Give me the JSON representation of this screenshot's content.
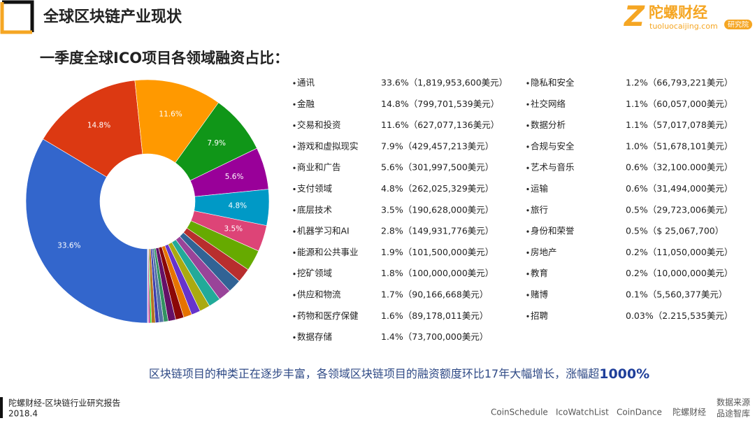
{
  "header": {
    "title": "全球区块链产业现状",
    "logo": {
      "mark": "Z",
      "name": "陀螺财经",
      "url": "tuoluocaijing.com",
      "badge": "研究院"
    }
  },
  "subtitle": "一季度全球ICO项目各领域融资占比：",
  "chart_data": {
    "type": "pie",
    "categories": [
      "通讯",
      "金融",
      "交易和投资",
      "游戏和虚拟现实",
      "商业和广告",
      "支付领域",
      "底层技术",
      "机器学习和AI",
      "能源和公共事业",
      "挖矿领域",
      "供应和物流",
      "药物和医疗保健",
      "数据存储",
      "隐私和安全",
      "社交网络",
      "数据分析",
      "合规与安全",
      "艺术与音乐",
      "运输",
      "旅行",
      "身份和荣誉",
      "房地产",
      "教育",
      "赌博",
      "招聘"
    ],
    "values": [
      33.6,
      14.8,
      11.6,
      7.9,
      5.6,
      4.8,
      3.5,
      2.8,
      1.9,
      1.8,
      1.7,
      1.6,
      1.4,
      1.2,
      1.1,
      1.1,
      1.0,
      0.6,
      0.6,
      0.5,
      0.5,
      0.2,
      0.2,
      0.1,
      0.03
    ],
    "value_labels": [
      "33.6%",
      "14.8%",
      "11.6%",
      "7.9%",
      "5.6%",
      "4.8%",
      "3.5%",
      null,
      null,
      null,
      null,
      null,
      null,
      null,
      null,
      null,
      null,
      null,
      null,
      null,
      null,
      null,
      null,
      null,
      null
    ],
    "colors": [
      "#3366cc",
      "#dc3912",
      "#ff9900",
      "#109618",
      "#990099",
      "#0099c6",
      "#dd4477",
      "#66aa00",
      "#b82e2e",
      "#316395",
      "#994499",
      "#22aa99",
      "#aaaa11",
      "#6633cc",
      "#e67300",
      "#8b0707",
      "#651067",
      "#329262",
      "#5574a6",
      "#3b3eac",
      "#b77322",
      "#16d620",
      "#b91383",
      "#f4359e",
      "#9c5935"
    ],
    "donut": true
  },
  "list": [
    "33.6%（1,819,953,600美元）",
    "14.8%（799,701,539美元）",
    "11.6%（627,077,136美元）",
    "7.9%（429,457,213美元）",
    "5.6%（301,997,500美元）",
    "4.8%（262,025,329美元）",
    "3.5%（190,628,000美元）",
    "2.8%（149,931,776美元）",
    "1.9%（101,500,000美元）",
    "1.8%（100,000,000美元）",
    "1.7%（90,166,668美元）",
    "1.6%（89,178,011美元）",
    "1.4%（73,700,000美元）",
    "1.2%（66,793,221美元）",
    "1.1%（60,057,000美元）",
    "1.1%（57,017,078美元）",
    "1.0%（51,678,101美元）",
    "0.6%（32,100.000美元）",
    "0.6%（31,494,000美元）",
    "0.5%（29,723,006美元）",
    "0.5%（$ 25,067,700）",
    "0.2%（11,050,000美元）",
    "0.2%（10,000,000美元）",
    "0.1%（5,560,377美元）",
    "0.03%（2.215,535美元）"
  ],
  "caption": {
    "text": "区块链项目的种类正在逐步丰富，各领域区块链项目的融资额度环比17年大幅增长，涨幅超",
    "highlight": "1000%"
  },
  "footer": {
    "report": "陀螺财经-区块链行业研究报告",
    "date": "2018.4",
    "sources": [
      "CoinSchedule",
      "IcoWatchList",
      "CoinDance",
      "陀螺财经"
    ],
    "source_label": [
      "数据来源",
      "品途智库"
    ]
  }
}
